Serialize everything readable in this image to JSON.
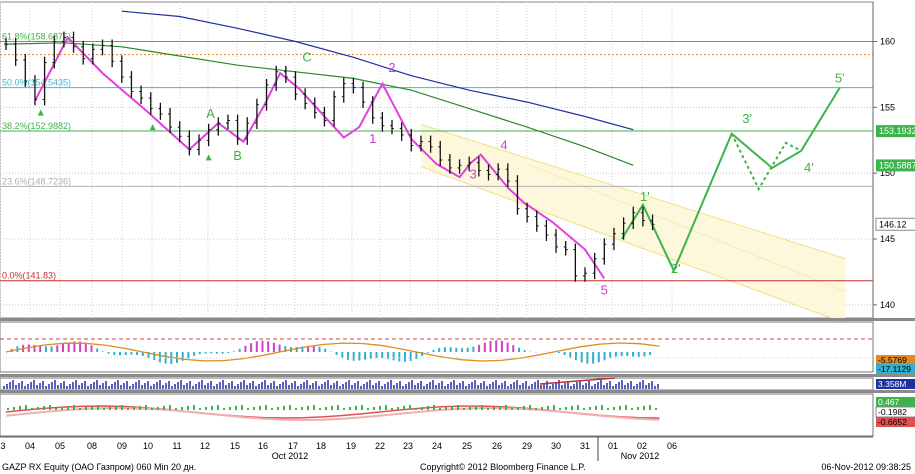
{
  "chart_data": {
    "type": "line",
    "grid": true,
    "y_axis": {
      "position": "right",
      "ylim": [
        139,
        163
      ],
      "ticks": [
        140,
        145,
        150,
        155,
        160
      ]
    },
    "x_axis": {
      "day_labels": [
        "3",
        "04",
        "05",
        "08",
        "09",
        "10",
        "11",
        "12",
        "15",
        "16",
        "17",
        "18",
        "19",
        "22",
        "23",
        "24",
        "25",
        "26",
        "29",
        "30",
        "31",
        "01",
        "02",
        "06"
      ],
      "month_labels": [
        "Oct 2012",
        "Nov 2012"
      ]
    },
    "levels": [
      {
        "label": "61.8%(158.6875)",
        "value": 160.0,
        "color": "#3cb44b"
      },
      {
        "label": "50.0%(154.5435)",
        "value": 156.5,
        "color": "#40b8d0"
      },
      {
        "label": "38.2%(152.9882)",
        "value": 153.2,
        "color": "#3cb44b"
      },
      {
        "label": "23.6%(148.7236)",
        "value": 149.0,
        "color": "#b0b0b0"
      },
      {
        "label": "0.0%(141.83)",
        "value": 141.83,
        "color": "#c03030"
      },
      {
        "label": "",
        "value": 159.0,
        "color": "#e08a20"
      }
    ],
    "price_tags": [
      {
        "label": "153.1932",
        "value": 153.1932,
        "bg": "#3cb44b",
        "fg": "#ffffff"
      },
      {
        "label": "150.5887",
        "value": 150.5887,
        "bg": "#3cb44b",
        "fg": "#ffffff"
      },
      {
        "label": "146.12",
        "value": 146.12,
        "bg": "#ffffff",
        "fg": "#000000"
      }
    ],
    "wave_labels": [
      {
        "text": "A",
        "x": 10.6,
        "y": 154.2,
        "color": "#3cb44b"
      },
      {
        "text": "B",
        "x": 12.0,
        "y": 151.0,
        "color": "#3cb44b"
      },
      {
        "text": "C",
        "x": 15.6,
        "y": 158.5,
        "color": "#3cb44b"
      },
      {
        "text": "1",
        "x": 19.0,
        "y": 152.3,
        "color": "#d040c8"
      },
      {
        "text": "2",
        "x": 20.0,
        "y": 157.7,
        "color": "#d040c8"
      },
      {
        "text": "3",
        "x": 24.2,
        "y": 149.6,
        "color": "#d040c8"
      },
      {
        "text": "4",
        "x": 25.8,
        "y": 151.8,
        "color": "#d040c8"
      },
      {
        "text": "5",
        "x": 31.0,
        "y": 140.8,
        "color": "#d040c8"
      },
      {
        "text": "1'",
        "x": 33.1,
        "y": 147.9,
        "color": "#3cb44b"
      },
      {
        "text": "2'",
        "x": 34.7,
        "y": 142.4,
        "color": "#3cb44b"
      },
      {
        "text": "3'",
        "x": 38.4,
        "y": 153.8,
        "color": "#3cb44b"
      },
      {
        "text": "4'",
        "x": 41.6,
        "y": 150.1,
        "color": "#3cb44b"
      },
      {
        "text": "5'",
        "x": 43.2,
        "y": 156.9,
        "color": "#3cb44b"
      }
    ],
    "series": [
      {
        "type": "candles",
        "x": [
          0,
          0.5,
          1,
          1.5,
          2,
          2.5,
          3,
          3.5,
          4,
          4.5,
          5,
          5.5,
          6,
          6.5,
          7,
          7.5,
          8,
          8.5,
          9,
          9.5,
          10,
          10.5,
          11,
          11.5,
          12,
          12.5,
          13,
          13.5,
          14,
          14.5,
          15,
          15.5,
          16,
          16.5,
          17,
          17.5,
          18,
          18.5,
          19,
          19.5,
          20,
          20.5,
          21,
          21.5,
          22,
          22.5,
          23,
          23.5,
          24,
          24.5,
          25,
          25.5,
          26,
          26.5,
          27,
          27.5,
          28,
          28.5,
          29,
          29.5,
          30,
          30.5,
          31,
          31.5,
          32,
          32.5,
          33,
          33.5
        ],
        "close": [
          159.8,
          158.6,
          157.0,
          155.6,
          158.4,
          160.0,
          160.3,
          159.6,
          158.7,
          159.4,
          159.7,
          158.5,
          157.3,
          156.2,
          155.7,
          154.9,
          154.5,
          153.5,
          152.8,
          151.8,
          152.5,
          153.3,
          153.8,
          154.0,
          152.6,
          153.8,
          155.2,
          156.7,
          157.7,
          157.3,
          156.0,
          155.3,
          154.6,
          154.0,
          155.8,
          156.8,
          156.5,
          155.4,
          154.2,
          153.6,
          153.4,
          152.9,
          152.1,
          152.4,
          152.0,
          151.0,
          150.4,
          150.6,
          150.8,
          150.2,
          149.9,
          150.3,
          149.4,
          147.3,
          146.7,
          146.0,
          145.3,
          144.4,
          144.2,
          142.2,
          142.4,
          143.5,
          144.6,
          145.4,
          146.2,
          147.0,
          146.4,
          146.12
        ]
      },
      {
        "name": "",
        "color": "#2030a0",
        "x": [
          6,
          9,
          12,
          15,
          18,
          21,
          24,
          27,
          30,
          32.5
        ],
        "y": [
          162.3,
          161.9,
          161.0,
          160.0,
          158.8,
          157.4,
          156.3,
          155.4,
          154.3,
          153.3
        ]
      },
      {
        "name": "",
        "color": "#2a8a2a",
        "x": [
          0,
          3,
          6,
          9,
          12,
          15,
          18,
          21,
          24,
          27,
          30,
          32.5
        ],
        "y": [
          159.8,
          159.9,
          159.6,
          158.9,
          158.2,
          157.7,
          157.2,
          156.3,
          154.9,
          153.5,
          152.0,
          150.6
        ]
      },
      {
        "name": "",
        "color": "#e040e0",
        "x": [
          1.5,
          3.2,
          5.0,
          7.3,
          9.5,
          11.0,
          12.3,
          13.4,
          14.2,
          15.2,
          17.5,
          18.3,
          19.5,
          21.0,
          22.3,
          23.5,
          24.1,
          24.6,
          26.0,
          26.8,
          28.3,
          30.0,
          31.0
        ],
        "y": [
          155.5,
          160.3,
          157.6,
          154.7,
          151.8,
          153.8,
          152.4,
          155.2,
          157.6,
          156.4,
          152.7,
          153.5,
          156.8,
          152.6,
          150.7,
          149.7,
          150.8,
          151.4,
          148.9,
          147.8,
          146.3,
          144.2,
          142.0
        ]
      },
      {
        "name": "",
        "color": "#3cb44b",
        "x": [
          31.9,
          33.0,
          34.6,
          37.6,
          39.7,
          41.2,
          43.2
        ],
        "y": [
          145.0,
          147.6,
          142.6,
          153.0,
          150.4,
          151.7,
          156.5
        ]
      },
      {
        "name": "",
        "color": "#3cb44b",
        "dashed": true,
        "x": [
          37.6,
          39.0,
          40.4,
          41.2
        ],
        "y": [
          153.0,
          148.8,
          152.3,
          151.7
        ]
      }
    ],
    "sub_panels": [
      {
        "name": "",
        "labels": [
          "-5.5769",
          "-17.1129"
        ]
      },
      {
        "name": "",
        "labels": [
          "3.358M"
        ]
      },
      {
        "name": "",
        "labels": [
          "0.467",
          "-0.1982",
          "-0.6652"
        ]
      }
    ]
  },
  "footer": {
    "left": "GAZP RX Equity (ОАО Газпром) 060 Min 20 дн.",
    "center": "Copyright© 2012 Bloomberg Finance L.P.",
    "right": "06-Nov-2012 09:38:25"
  }
}
